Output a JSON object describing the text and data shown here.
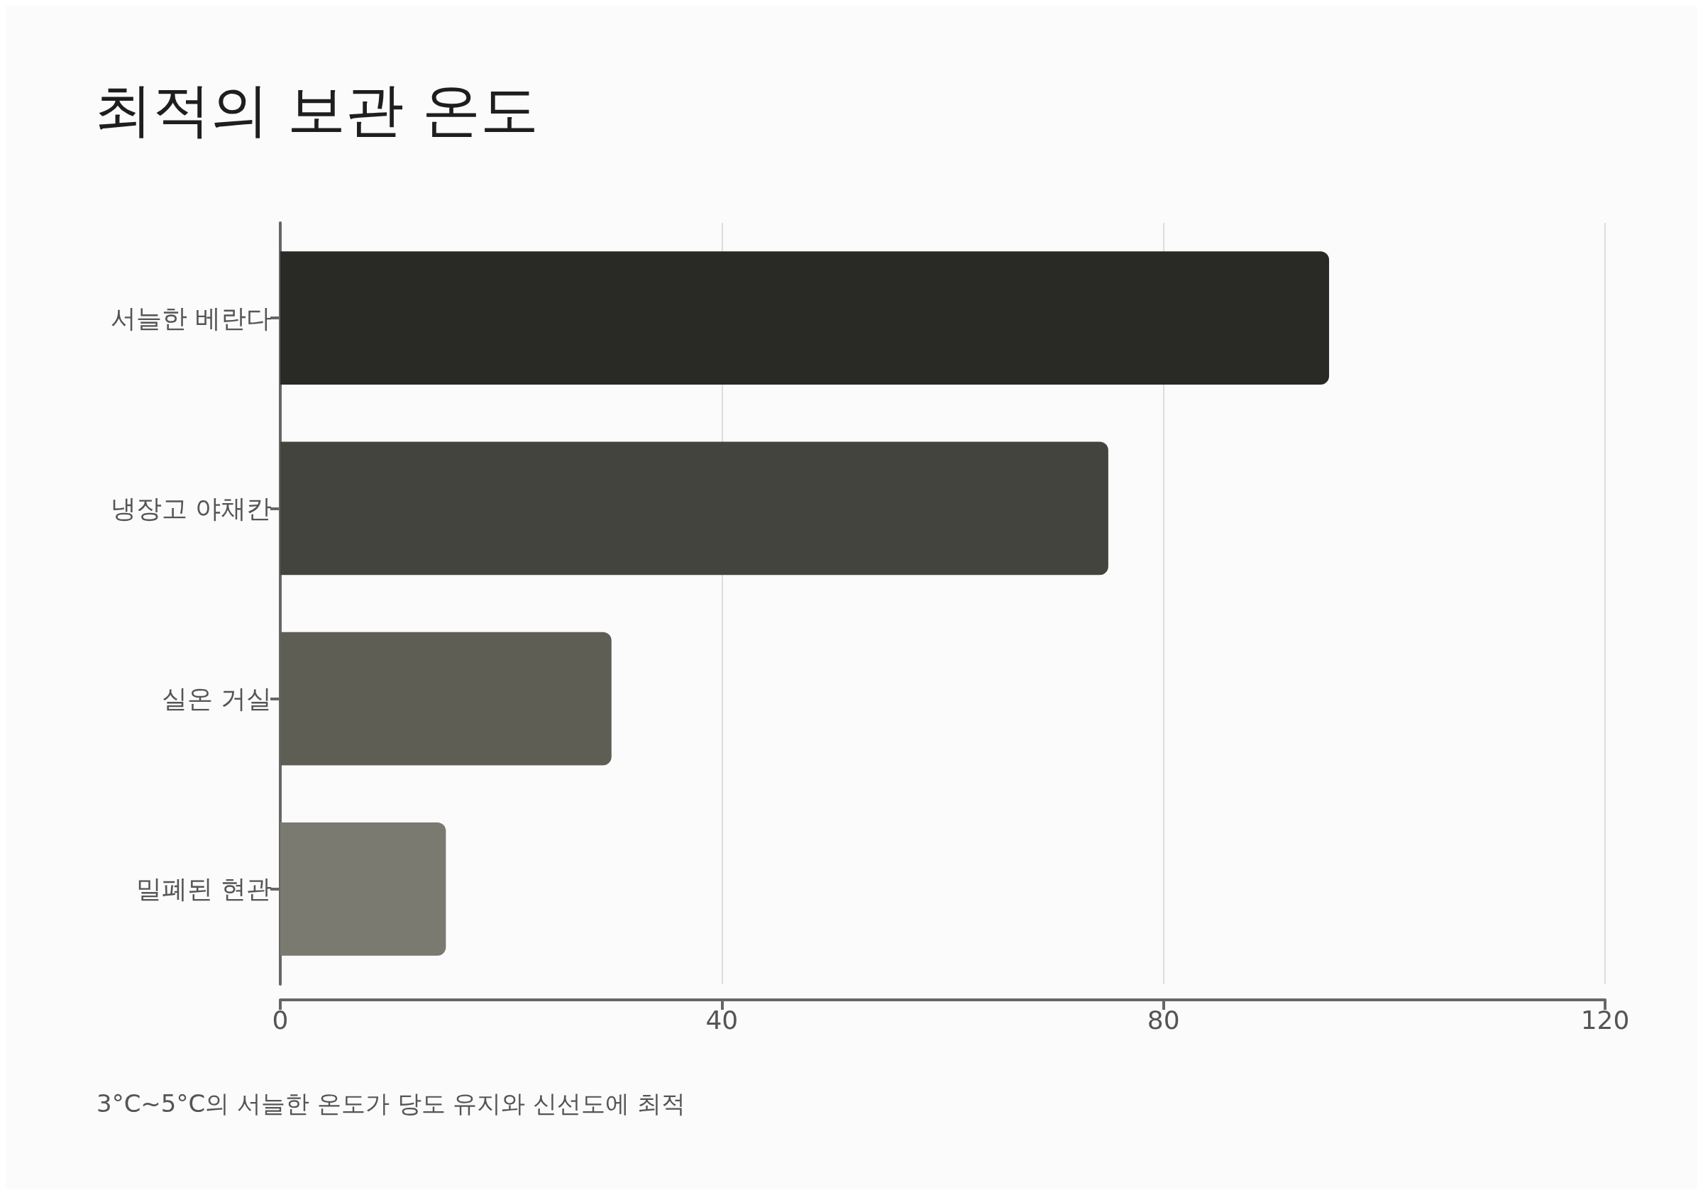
{
  "chart_data": {
    "type": "bar",
    "orientation": "horizontal",
    "title": "최적의 보관 온도",
    "categories": [
      "서늘한 베란다",
      "냉장고 야채칸",
      "실온 거실",
      "밀폐된 현관"
    ],
    "values": [
      95,
      75,
      30,
      15
    ],
    "colors": [
      "#292a25",
      "#43443d",
      "#5e5e55",
      "#7a7a70"
    ],
    "xlim": [
      0,
      120
    ],
    "xticks": [
      0,
      40,
      80,
      120
    ],
    "grid": "x",
    "annotations": [
      "3°C~5°C의 서늘한 온도가 당도 유지와 신선도에 최적"
    ]
  }
}
